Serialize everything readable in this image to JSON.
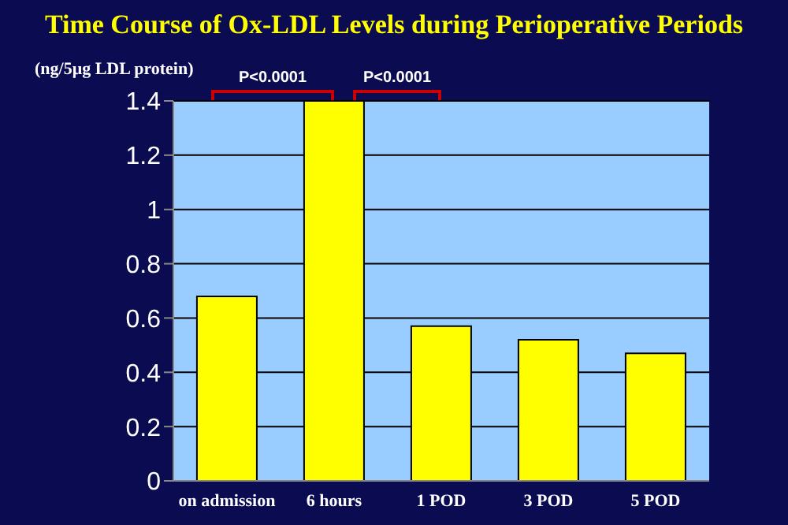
{
  "chart_data": {
    "type": "bar",
    "title": "Time Course of Ox-LDL Levels during Perioperative Periods",
    "ylabel": "(ng/5μg LDL protein)",
    "categories": [
      "on admission",
      "6 hours",
      "1 POD",
      "3 POD",
      "5 POD"
    ],
    "values": [
      0.68,
      1.4,
      0.57,
      0.52,
      0.47
    ],
    "color": "#ffff00",
    "ylim": [
      0,
      1.4
    ],
    "yticks": [
      0,
      0.2,
      0.4,
      0.6,
      0.8,
      1,
      1.2,
      1.4
    ],
    "grid": "y",
    "annotations": [
      "P<0.0001",
      "P<0.0001"
    ]
  }
}
